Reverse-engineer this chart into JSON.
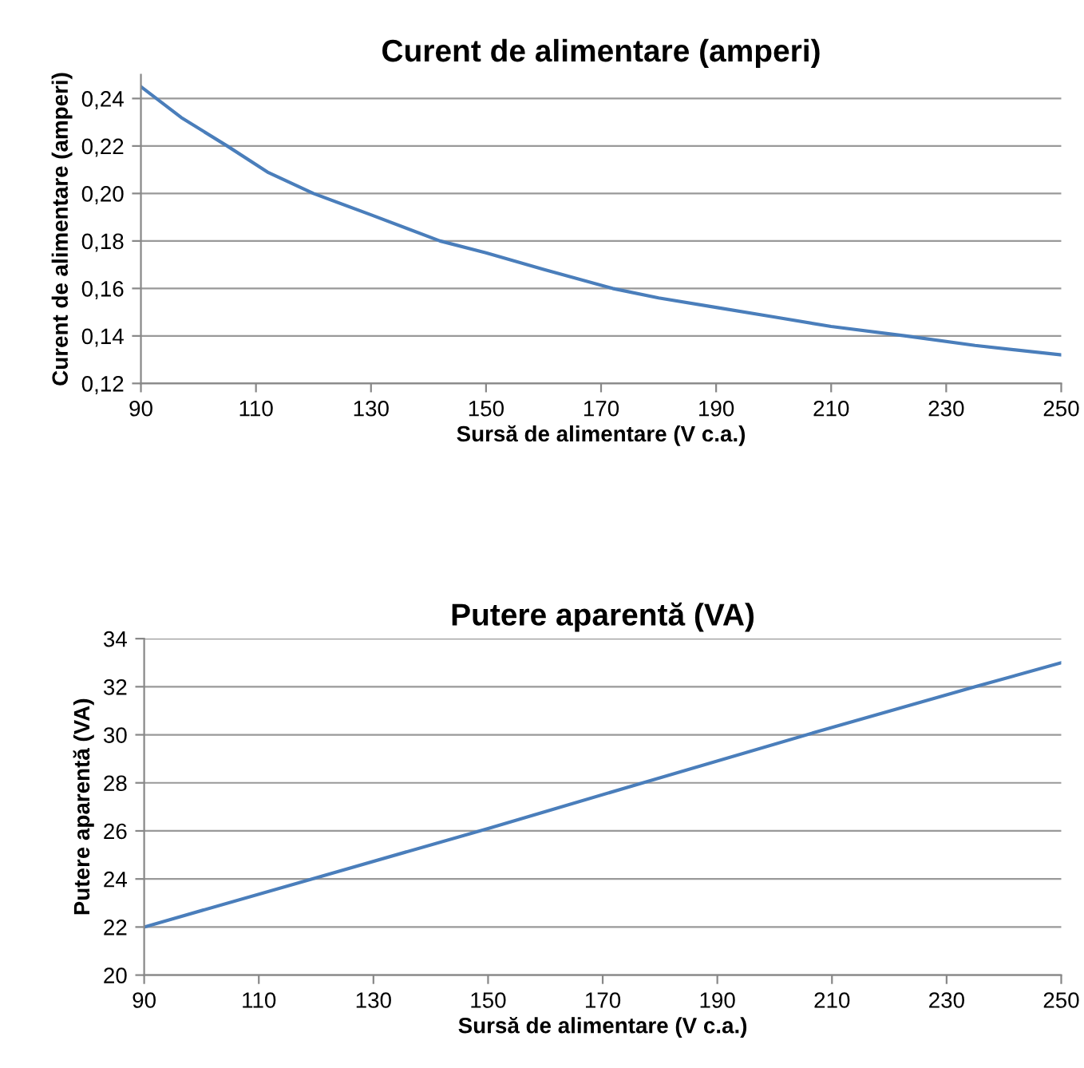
{
  "chart_data": [
    {
      "type": "line",
      "title": "Curent de alimentare (amperi)",
      "xlabel": "Sursă de alimentare (V c.a.)",
      "ylabel": "Curent de alimentare (amperi)",
      "x": [
        90,
        97,
        105,
        112,
        120,
        130,
        142,
        150,
        160,
        172,
        180,
        190,
        200,
        210,
        223,
        235,
        250
      ],
      "series": [
        {
          "color": "#4a7ebb",
          "values": [
            0.245,
            0.232,
            0.22,
            0.209,
            0.2,
            0.191,
            0.18,
            0.175,
            0.168,
            0.16,
            0.156,
            0.152,
            0.148,
            0.144,
            0.14,
            0.136,
            0.132
          ]
        }
      ],
      "xlim": [
        90,
        250
      ],
      "xticks": [
        90,
        110,
        130,
        150,
        170,
        190,
        210,
        230,
        250
      ],
      "ylim": [
        0.12,
        0.25
      ],
      "yticks": [
        {
          "value": 0.12,
          "label": "0,12"
        },
        {
          "value": 0.14,
          "label": "0,14"
        },
        {
          "value": 0.16,
          "label": "0,16"
        },
        {
          "value": 0.18,
          "label": "0,18"
        },
        {
          "value": 0.2,
          "label": "0,20"
        },
        {
          "value": 0.22,
          "label": "0,22"
        },
        {
          "value": 0.24,
          "label": "0,24"
        }
      ],
      "grid": "y",
      "marker": "none",
      "line_style": "solid"
    },
    {
      "type": "line",
      "title": "Putere aparentă (VA)",
      "xlabel": "Sursă de alimentare (V c.a.)",
      "ylabel": "Putere aparentă (VA)",
      "x": [
        90,
        120,
        150,
        177,
        207,
        235,
        250
      ],
      "series": [
        {
          "color": "#4a7ebb",
          "values": [
            22,
            24.05,
            26.1,
            28,
            30.1,
            32,
            33
          ]
        }
      ],
      "xlim": [
        90,
        250
      ],
      "xticks": [
        90,
        110,
        130,
        150,
        170,
        190,
        210,
        230,
        250
      ],
      "ylim": [
        20,
        34
      ],
      "yticks": [
        20,
        22,
        24,
        26,
        28,
        30,
        32,
        34
      ],
      "grid": "y",
      "marker": "none",
      "line_style": "solid"
    }
  ]
}
